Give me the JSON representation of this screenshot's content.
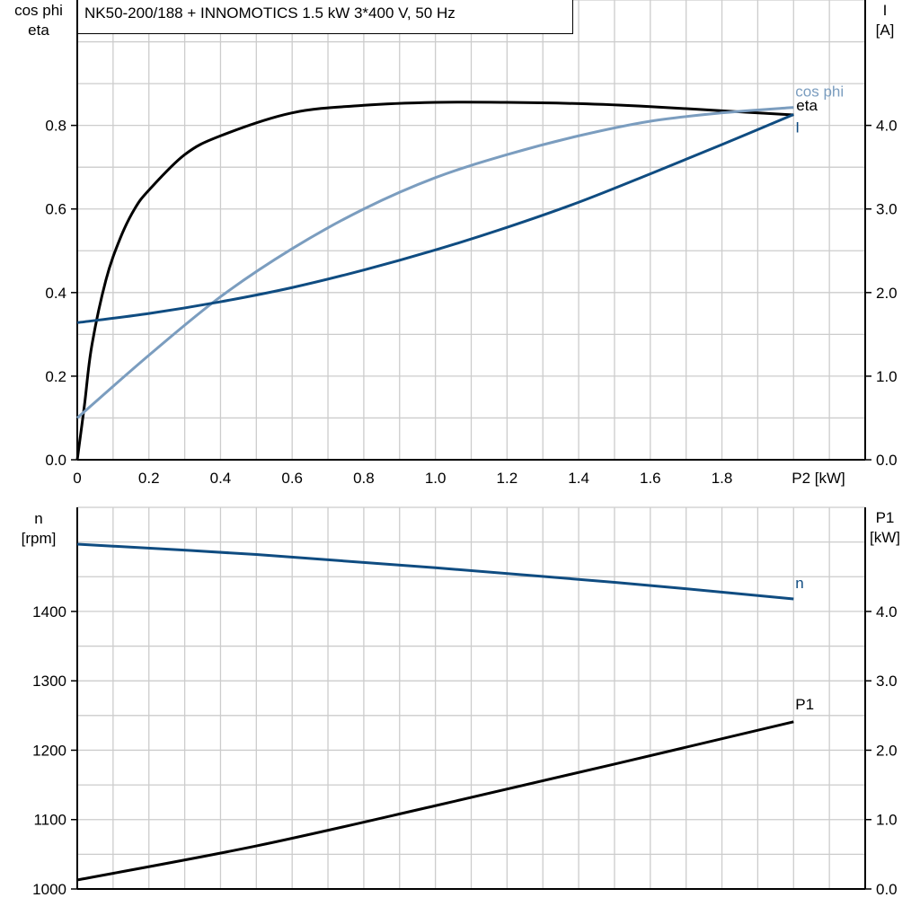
{
  "title": "NK50-200/188 + INNOMOTICS   1.5 kW   3*400 V, 50 Hz",
  "colors": {
    "eta": "#000000",
    "cos_phi": "#7b9dbf",
    "I": "#0f4c81",
    "n": "#0f4c81",
    "P1": "#000000",
    "grid": "#cccccc"
  },
  "chart_data": [
    {
      "type": "line",
      "xlabel": "P2 [kW]",
      "ylabel_left": [
        "cos phi",
        "eta"
      ],
      "ylabel_right": [
        "I",
        "[A]"
      ],
      "xlim": [
        0,
        2.2
      ],
      "ylim_left": [
        0,
        1.1
      ],
      "ylim_right": [
        0,
        5.5
      ],
      "grid": true,
      "x_ticks": [
        "0",
        "0.2",
        "0.4",
        "0.6",
        "0.8",
        "1.0",
        "1.2",
        "1.4",
        "1.6",
        "1.8"
      ],
      "left_ticks": [
        "0.0",
        "0.2",
        "0.4",
        "0.6",
        "0.8"
      ],
      "right_ticks": [
        "0.0",
        "1.0",
        "2.0",
        "3.0",
        "4.0"
      ],
      "series": [
        {
          "name": "eta",
          "axis": "left",
          "x": [
            0,
            0.02,
            0.04,
            0.08,
            0.12,
            0.16,
            0.2,
            0.3,
            0.4,
            0.6,
            0.8,
            1.0,
            1.2,
            1.4,
            1.6,
            1.8,
            2.0
          ],
          "y": [
            0,
            0.13,
            0.27,
            0.43,
            0.53,
            0.6,
            0.645,
            0.73,
            0.775,
            0.83,
            0.848,
            0.855,
            0.855,
            0.852,
            0.845,
            0.835,
            0.825
          ]
        },
        {
          "name": "cos phi",
          "axis": "left",
          "x": [
            0,
            0.2,
            0.4,
            0.6,
            0.8,
            1.0,
            1.2,
            1.4,
            1.6,
            1.8,
            2.0
          ],
          "y": [
            0.1,
            0.25,
            0.39,
            0.505,
            0.6,
            0.675,
            0.73,
            0.775,
            0.81,
            0.83,
            0.843
          ]
        },
        {
          "name": "I",
          "axis": "right",
          "x": [
            0,
            0.2,
            0.4,
            0.6,
            0.8,
            1.0,
            1.2,
            1.4,
            1.6,
            1.8,
            2.0
          ],
          "y": [
            1.64,
            1.75,
            1.89,
            2.06,
            2.27,
            2.51,
            2.78,
            3.08,
            3.42,
            3.77,
            4.13
          ]
        }
      ]
    },
    {
      "type": "line",
      "xlim": [
        0,
        2.2
      ],
      "ylabel_left": [
        "n",
        "[rpm]"
      ],
      "ylabel_right": [
        "P1",
        "[kW]"
      ],
      "ylim_left": [
        1000,
        1550
      ],
      "ylim_right": [
        0,
        5.5
      ],
      "grid": true,
      "left_ticks": [
        "1000",
        "1100",
        "1200",
        "1300",
        "1400"
      ],
      "right_ticks": [
        "0.0",
        "1.0",
        "2.0",
        "3.0",
        "4.0"
      ],
      "series": [
        {
          "name": "n",
          "axis": "left",
          "x": [
            0,
            0.5,
            1.0,
            1.5,
            2.0
          ],
          "y": [
            1497,
            1482,
            1463,
            1442,
            1418
          ]
        },
        {
          "name": "P1",
          "axis": "right",
          "x": [
            0,
            0.5,
            1.0,
            1.5,
            2.0
          ],
          "y": [
            0.13,
            0.62,
            1.2,
            1.8,
            2.41
          ]
        }
      ]
    }
  ]
}
